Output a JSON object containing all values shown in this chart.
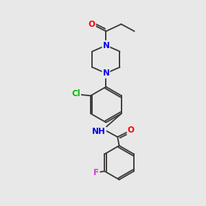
{
  "background_color": "#e8e8e8",
  "bond_color": "#3a3a3a",
  "bond_width": 1.4,
  "atom_colors": {
    "O": "#ff0000",
    "N": "#0000ee",
    "Cl": "#00bb00",
    "F": "#cc44cc"
  },
  "font_size_atoms": 8.5
}
